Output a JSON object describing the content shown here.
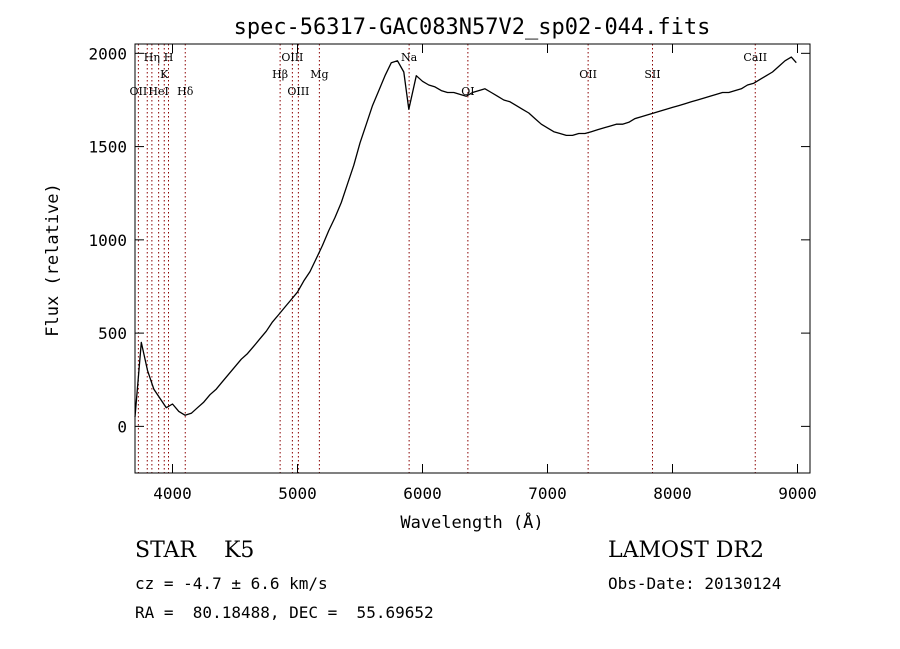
{
  "chart_data": {
    "type": "line",
    "title": "spec-56317-GAC083N57V2_sp02-044.fits",
    "xlabel": "Wavelength (Å)",
    "ylabel": "Flux (relative)",
    "xlim": [
      3700,
      9100
    ],
    "ylim": [
      -250,
      2050
    ],
    "xticks": [
      4000,
      5000,
      6000,
      7000,
      8000,
      9000
    ],
    "xtick_labels": [
      "4000",
      "5000",
      "6000",
      "7000",
      "8000",
      "9000"
    ],
    "yticks": [
      0,
      500,
      1000,
      1500,
      2000
    ],
    "ytick_labels": [
      "0",
      "500",
      "1000",
      "1500",
      "2000"
    ],
    "grid": false,
    "line_color": "#000000",
    "marker_color": "#8b0000",
    "series": [
      {
        "x": [
          3700,
          3750,
          3800,
          3850,
          3900,
          3950,
          4000,
          4050,
          4100,
          4150,
          4200,
          4250,
          4300,
          4350,
          4400,
          4450,
          4500,
          4550,
          4600,
          4650,
          4700,
          4750,
          4800,
          4850,
          4900,
          4950,
          5000,
          5050,
          5100,
          5150,
          5200,
          5250,
          5300,
          5350,
          5400,
          5450,
          5500,
          5550,
          5600,
          5650,
          5700,
          5750,
          5800,
          5850,
          5890,
          5950,
          6000,
          6050,
          6100,
          6150,
          6200,
          6250,
          6300,
          6350,
          6400,
          6450,
          6500,
          6550,
          6600,
          6650,
          6700,
          6750,
          6800,
          6850,
          6900,
          6950,
          7000,
          7050,
          7100,
          7150,
          7200,
          7250,
          7300,
          7350,
          7400,
          7450,
          7500,
          7550,
          7600,
          7650,
          7700,
          7750,
          7800,
          7850,
          7900,
          7950,
          8000,
          8050,
          8100,
          8150,
          8200,
          8250,
          8300,
          8350,
          8400,
          8450,
          8500,
          8550,
          8600,
          8650,
          8700,
          8750,
          8800,
          8850,
          8900,
          8950,
          8990
        ],
        "y": [
          50,
          450,
          300,
          200,
          150,
          100,
          120,
          80,
          60,
          70,
          100,
          130,
          170,
          200,
          240,
          280,
          320,
          360,
          390,
          430,
          470,
          510,
          560,
          600,
          640,
          680,
          720,
          780,
          830,
          900,
          970,
          1050,
          1120,
          1200,
          1300,
          1400,
          1520,
          1620,
          1720,
          1800,
          1880,
          1950,
          1960,
          1900,
          1700,
          1880,
          1850,
          1830,
          1820,
          1800,
          1790,
          1790,
          1780,
          1770,
          1790,
          1800,
          1810,
          1790,
          1770,
          1750,
          1740,
          1720,
          1700,
          1680,
          1650,
          1620,
          1600,
          1580,
          1570,
          1560,
          1560,
          1570,
          1570,
          1580,
          1590,
          1600,
          1610,
          1620,
          1620,
          1630,
          1650,
          1660,
          1670,
          1680,
          1690,
          1700,
          1710,
          1720,
          1730,
          1740,
          1750,
          1760,
          1770,
          1780,
          1790,
          1790,
          1800,
          1810,
          1830,
          1840,
          1860,
          1880,
          1900,
          1930,
          1960,
          1980,
          1950
        ]
      }
    ],
    "annotations": [
      {
        "label": "OII",
        "x": 3727,
        "row": 3
      },
      {
        "label": "Hη",
        "x": 3835,
        "row": 1
      },
      {
        "label": "H",
        "x": 3968,
        "row": 1
      },
      {
        "label": "K",
        "x": 3934,
        "row": 2
      },
      {
        "label": "HeI",
        "x": 3889,
        "row": 3
      },
      {
        "label": "Hδ",
        "x": 4102,
        "row": 3
      },
      {
        "label": "OIII",
        "x": 4959,
        "row": 1
      },
      {
        "label": "Hβ",
        "x": 4861,
        "row": 2
      },
      {
        "label": "Mg",
        "x": 5175,
        "row": 2
      },
      {
        "label": "OIII",
        "x": 5007,
        "row": 3
      },
      {
        "label": "Na",
        "x": 5893,
        "row": 1
      },
      {
        "label": "OI",
        "x": 6363,
        "row": 3
      },
      {
        "label": "OII",
        "x": 7325,
        "row": 2
      },
      {
        "label": "SII",
        "x": 7840,
        "row": 2
      },
      {
        "label": "CaII",
        "x": 8662,
        "row": 1
      }
    ],
    "marker_lines_x": [
      3727,
      3798,
      3835,
      3889,
      3934,
      3968,
      4102,
      4861,
      4959,
      5007,
      5175,
      5893,
      6363,
      7325,
      7840,
      8662
    ]
  },
  "info": {
    "class_label": "STAR    K5",
    "cz_label": "cz = -4.7 ± 6.6 km/s",
    "coord_label": "RA =  80.18488, DEC =  55.69652",
    "survey_label": "LAMOST DR2",
    "obs_date_label": "Obs-Date: 20130124"
  }
}
